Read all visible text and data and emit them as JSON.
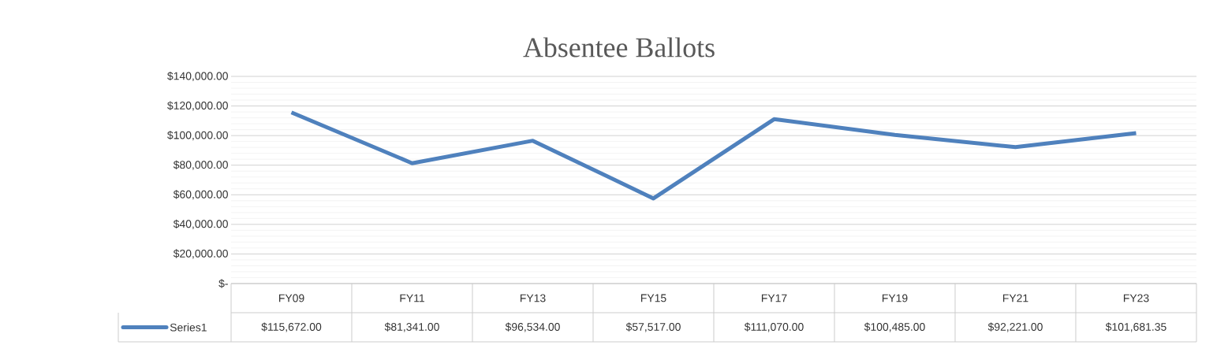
{
  "chart_data": {
    "type": "line",
    "title": "Absentee Ballots",
    "categories": [
      "FY09",
      "FY11",
      "FY13",
      "FY15",
      "FY17",
      "FY19",
      "FY21",
      "FY23"
    ],
    "series": [
      {
        "name": "Series1",
        "color": "#4f81bd",
        "values": [
          115672,
          81341,
          96534,
          57517,
          111070,
          100485,
          92221,
          101681.35
        ],
        "value_labels": [
          "$115,672.00",
          "$81,341.00",
          "$96,534.00",
          "$57,517.00",
          "$111,070.00",
          "$100,485.00",
          "$92,221.00",
          "$101,681.35"
        ]
      }
    ],
    "ylim": [
      0,
      140000
    ],
    "yticks": [
      {
        "value": 0,
        "label": "$-"
      },
      {
        "value": 20000,
        "label": "$20,000.00"
      },
      {
        "value": 40000,
        "label": "$40,000.00"
      },
      {
        "value": 60000,
        "label": "$60,000.00"
      },
      {
        "value": 80000,
        "label": "$80,000.00"
      },
      {
        "value": 100000,
        "label": "$100,000.00"
      },
      {
        "value": 120000,
        "label": "$120,000.00"
      },
      {
        "value": 140000,
        "label": "$140,000.00"
      }
    ],
    "grid": true,
    "legend": "bottom",
    "marker": "none",
    "line_style": "solid"
  }
}
